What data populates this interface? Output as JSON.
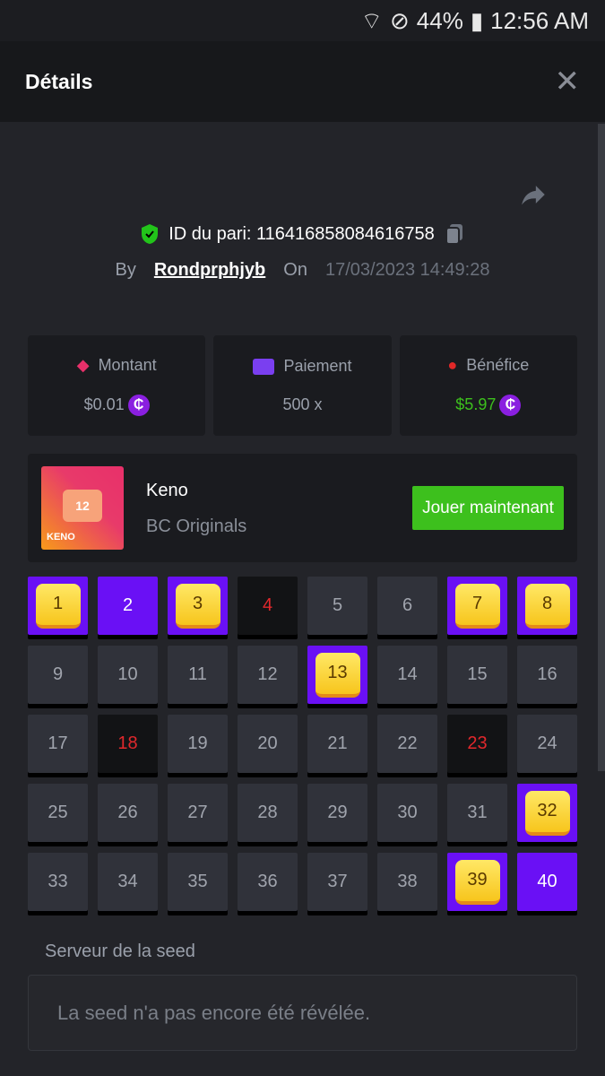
{
  "status_bar": {
    "battery": "44%",
    "time": "12:56 AM"
  },
  "header": {
    "title": "Détails",
    "close_icon": "close-icon"
  },
  "bet": {
    "id_label": "ID du pari: 116416858084616758",
    "by_label": "By",
    "user": "Rondprphjyb",
    "on_label": "On",
    "date": "17/03/2023 14:49:28"
  },
  "stats": [
    {
      "label": "Montant",
      "value": "$0.01",
      "coin": "₵",
      "color": "#9aa0ab"
    },
    {
      "label": "Paiement",
      "value": "500 x",
      "color": "#9aa0ab"
    },
    {
      "label": "Bénéfice",
      "value": "$5.97",
      "coin": "₵",
      "color": "#3dc01d"
    }
  ],
  "game": {
    "thumb_number": "12",
    "thumb_label": "KENO",
    "name": "Keno",
    "provider": "BC Originals",
    "play_label": "Jouer maintenant"
  },
  "board": {
    "hits": [
      1,
      3,
      7,
      8,
      13,
      32,
      39
    ],
    "selected_misses": [
      2,
      40
    ],
    "drawn_not_selected": [
      4,
      18,
      23
    ],
    "total": 40
  },
  "seed": {
    "label": "Serveur de la seed",
    "value": "La seed n'a pas encore été révélée."
  }
}
